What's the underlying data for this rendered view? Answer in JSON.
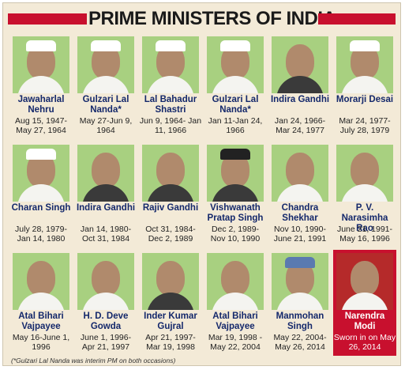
{
  "title": "PRIME MINISTERS OF INDIA",
  "ministers": [
    {
      "name": "Jawaharlal Nehru",
      "term": "Aug 15, 1947- May 27, 1964"
    },
    {
      "name": "Gulzari Lal Nanda*",
      "term": "May 27-Jun 9, 1964"
    },
    {
      "name": "Lal Bahadur Shastri",
      "term": "Jun 9, 1964- Jan 11, 1966"
    },
    {
      "name": "Gulzari Lal Nanda*",
      "term": "Jan 11-Jan 24, 1966"
    },
    {
      "name": "Indira Gandhi",
      "term": "Jan 24, 1966- Mar 24, 1977"
    },
    {
      "name": "Morarji Desai",
      "term": "Mar 24, 1977- July 28, 1979"
    },
    {
      "name": "Charan Singh",
      "term": "July 28, 1979- Jan 14, 1980"
    },
    {
      "name": "Indira Gandhi",
      "term": "Jan 14, 1980- Oct 31, 1984"
    },
    {
      "name": "Rajiv Gandhi",
      "term": "Oct 31, 1984- Dec 2, 1989"
    },
    {
      "name": "Vishwanath Pratap Singh",
      "term": "Dec 2, 1989- Nov 10, 1990"
    },
    {
      "name": "Chandra Shekhar",
      "term": "Nov 10, 1990- June 21, 1991"
    },
    {
      "name": "P. V. Narasimha Rao",
      "term": "June 21, 1991- May 16, 1996"
    },
    {
      "name": "Atal Bihari Vajpayee",
      "term": "May 16-June 1, 1996"
    },
    {
      "name": "H. D. Deve Gowda",
      "term": "June 1, 1996- Apr 21, 1997"
    },
    {
      "name": "Inder Kumar Gujral",
      "term": "Apr 21, 1997- Mar 19, 1998"
    },
    {
      "name": "Atal Bihari Vajpayee",
      "term": "Mar 19, 1998 - May 22, 2004"
    },
    {
      "name": "Manmohan Singh",
      "term": "May 22, 2004- May 26, 2014"
    },
    {
      "name": "Narendra Modi",
      "term": "Sworn in on May 26, 2014"
    }
  ],
  "footnote": "(*Gulzari Lal Nanda was interim PM on both occasions)",
  "colors": {
    "accent_red": "#c8102e",
    "name_blue": "#14286b",
    "photo_green": "#a8d080",
    "background": "#f3ead7"
  }
}
